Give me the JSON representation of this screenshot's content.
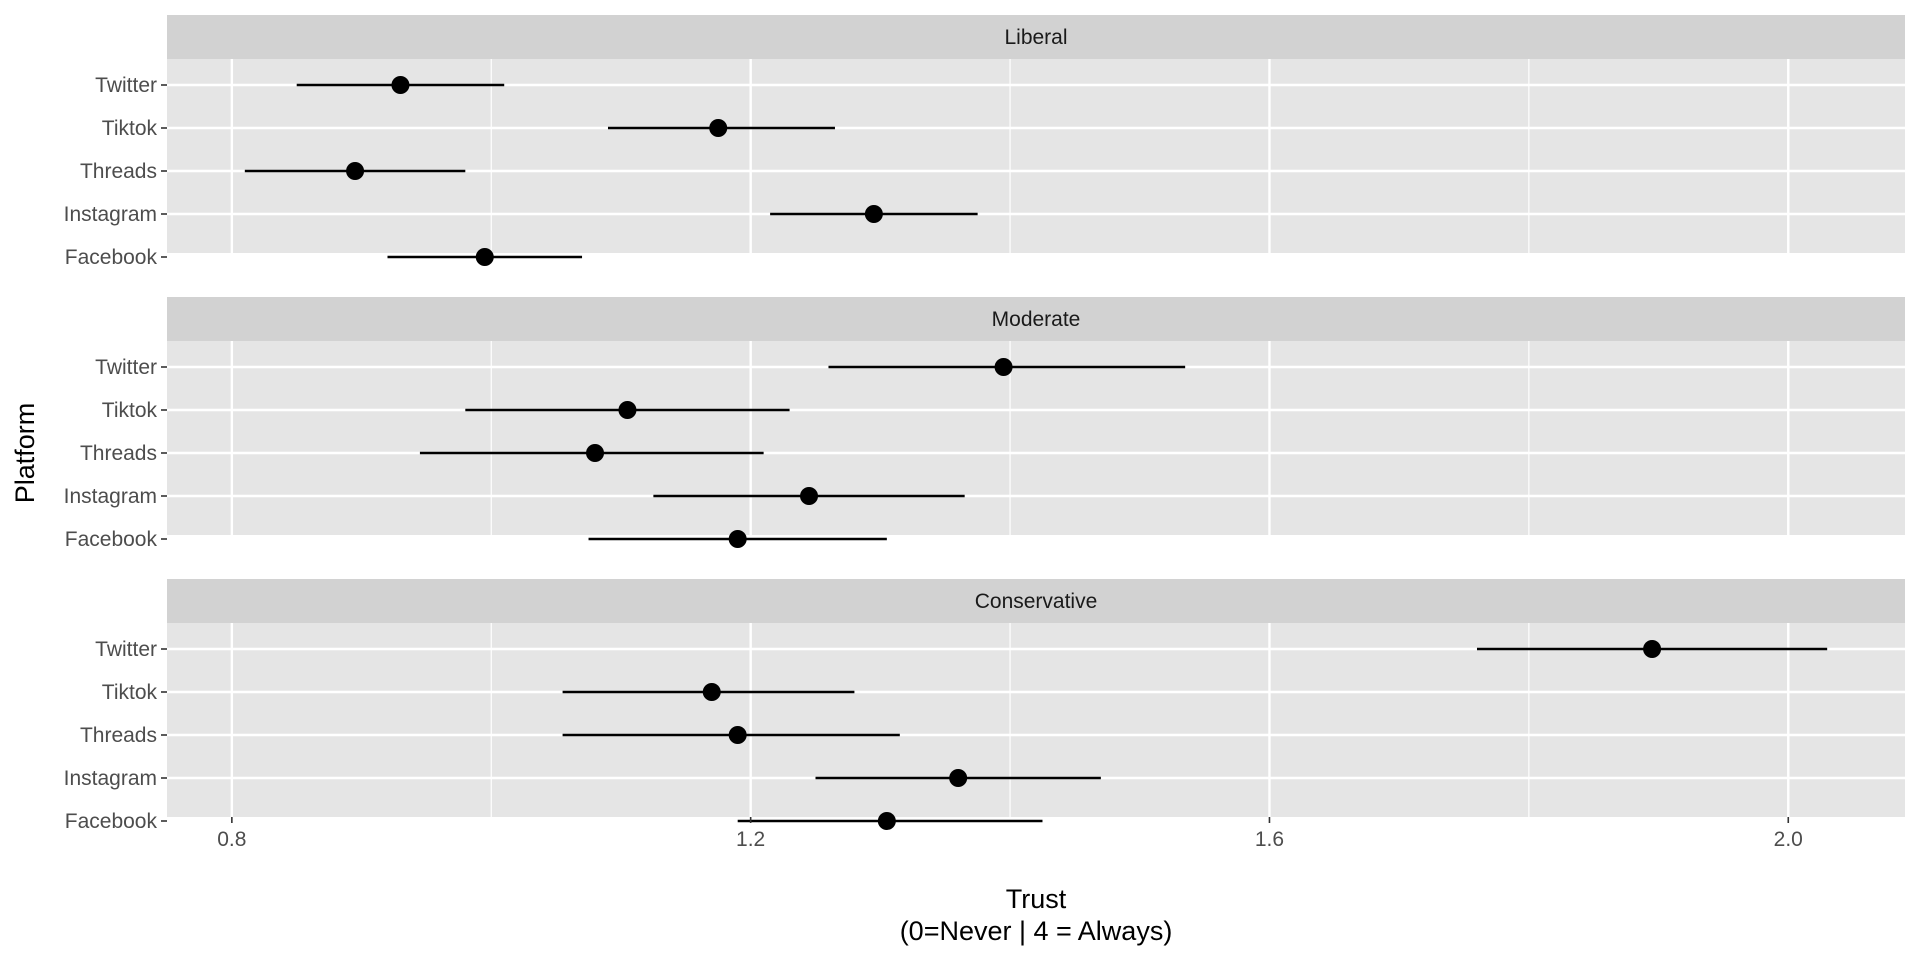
{
  "chart_data": {
    "type": "scatter",
    "subtype": "point-range (faceted)",
    "xlabel_line1": "Trust",
    "xlabel_line2": "(0=Never | 4 = Always)",
    "ylabel": "Platform",
    "xlim": [
      0.75,
      2.09
    ],
    "x_ticks": [
      0.8,
      1.2,
      1.6,
      2.0
    ],
    "x_tick_labels": [
      "0.8",
      "1.2",
      "1.6",
      "2.0"
    ],
    "x_minor_ticks": [
      1.0,
      1.4,
      1.8
    ],
    "categories": [
      "Twitter",
      "Tiktok",
      "Threads",
      "Instagram",
      "Facebook"
    ],
    "facets": [
      {
        "label": "Liberal",
        "points": [
          {
            "platform": "Twitter",
            "estimate": 0.93,
            "low": 0.85,
            "high": 1.01
          },
          {
            "platform": "Tiktok",
            "estimate": 1.175,
            "low": 1.09,
            "high": 1.265
          },
          {
            "platform": "Threads",
            "estimate": 0.895,
            "low": 0.81,
            "high": 0.98
          },
          {
            "platform": "Instagram",
            "estimate": 1.295,
            "low": 1.215,
            "high": 1.375
          },
          {
            "platform": "Facebook",
            "estimate": 0.995,
            "low": 0.92,
            "high": 1.07
          }
        ]
      },
      {
        "label": "Moderate",
        "points": [
          {
            "platform": "Twitter",
            "estimate": 1.395,
            "low": 1.26,
            "high": 1.535
          },
          {
            "platform": "Tiktok",
            "estimate": 1.105,
            "low": 0.98,
            "high": 1.23
          },
          {
            "platform": "Threads",
            "estimate": 1.08,
            "low": 0.945,
            "high": 1.21
          },
          {
            "platform": "Instagram",
            "estimate": 1.245,
            "low": 1.125,
            "high": 1.365
          },
          {
            "platform": "Facebook",
            "estimate": 1.19,
            "low": 1.075,
            "high": 1.305
          }
        ]
      },
      {
        "label": "Conservative",
        "points": [
          {
            "platform": "Twitter",
            "estimate": 1.895,
            "low": 1.76,
            "high": 2.03
          },
          {
            "platform": "Tiktok",
            "estimate": 1.17,
            "low": 1.055,
            "high": 1.28
          },
          {
            "platform": "Threads",
            "estimate": 1.19,
            "low": 1.055,
            "high": 1.315
          },
          {
            "platform": "Instagram",
            "estimate": 1.36,
            "low": 1.25,
            "high": 1.47
          },
          {
            "platform": "Facebook",
            "estimate": 1.305,
            "low": 1.19,
            "high": 1.425
          }
        ]
      }
    ],
    "colors": {
      "panel_background": "#e5e5e5",
      "strip_background": "#d2d2d2",
      "grid": "#ffffff",
      "point": "#000000"
    },
    "grid": true,
    "legend": "none"
  }
}
